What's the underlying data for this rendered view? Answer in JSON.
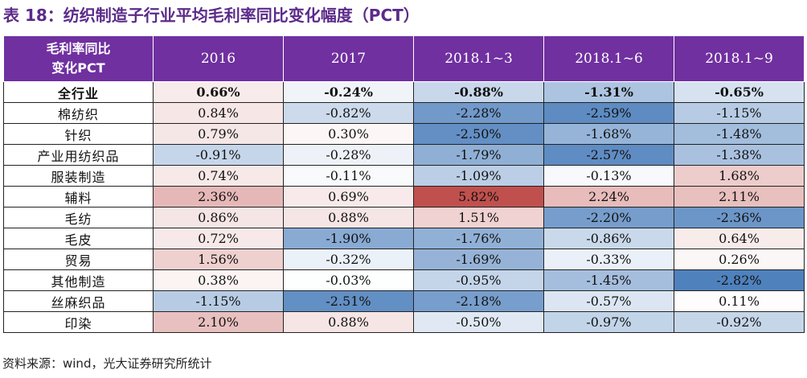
{
  "title": "表 18：纺织制造子行业平均毛利率同比变化幅度（PCT）",
  "header": {
    "corner_line1": "毛利率同比",
    "corner_line2": "变化PCT",
    "columns": [
      "2016",
      "2017",
      "2018.1~3",
      "2018.1~6",
      "2018.1~9"
    ]
  },
  "rows": [
    {
      "label": "全行业",
      "values": [
        "0.66%",
        "-0.24%",
        "-0.88%",
        "-1.31%",
        "-0.65%"
      ]
    },
    {
      "label": "棉纺织",
      "values": [
        "0.84%",
        "-0.82%",
        "-2.28%",
        "-2.59%",
        "-1.15%"
      ]
    },
    {
      "label": "针织",
      "values": [
        "0.79%",
        "0.30%",
        "-2.50%",
        "-1.68%",
        "-1.48%"
      ]
    },
    {
      "label": "产业用纺织品",
      "values": [
        "-0.91%",
        "-0.28%",
        "-1.79%",
        "-2.57%",
        "-1.38%"
      ]
    },
    {
      "label": "服装制造",
      "values": [
        "0.74%",
        "-0.11%",
        "-1.09%",
        "-0.13%",
        "1.68%"
      ]
    },
    {
      "label": "辅料",
      "values": [
        "2.36%",
        "0.69%",
        "5.82%",
        "2.24%",
        "2.11%"
      ]
    },
    {
      "label": "毛纺",
      "values": [
        "0.86%",
        "0.88%",
        "1.51%",
        "-2.20%",
        "-2.36%"
      ]
    },
    {
      "label": "毛皮",
      "values": [
        "0.72%",
        "-1.90%",
        "-1.76%",
        "-0.86%",
        "0.64%"
      ]
    },
    {
      "label": "贸易",
      "values": [
        "1.56%",
        "-0.32%",
        "-1.69%",
        "-0.33%",
        "0.26%"
      ]
    },
    {
      "label": "其他制造",
      "values": [
        "0.38%",
        "-0.03%",
        "-0.95%",
        "-1.45%",
        "-2.82%"
      ]
    },
    {
      "label": "丝麻织品",
      "values": [
        "-1.15%",
        "-2.51%",
        "-2.18%",
        "-0.57%",
        "0.11%"
      ]
    },
    {
      "label": "印染",
      "values": [
        "2.10%",
        "0.88%",
        "-0.50%",
        "-0.97%",
        "-0.92%"
      ]
    }
  ],
  "source": "资料来源：wind，光大证券研究所统计",
  "colors": {
    "header_bg": "#7030a0",
    "positive_max": "#c0504d",
    "negative_max": "#4f81bd",
    "neutral": "#ffffff"
  }
}
